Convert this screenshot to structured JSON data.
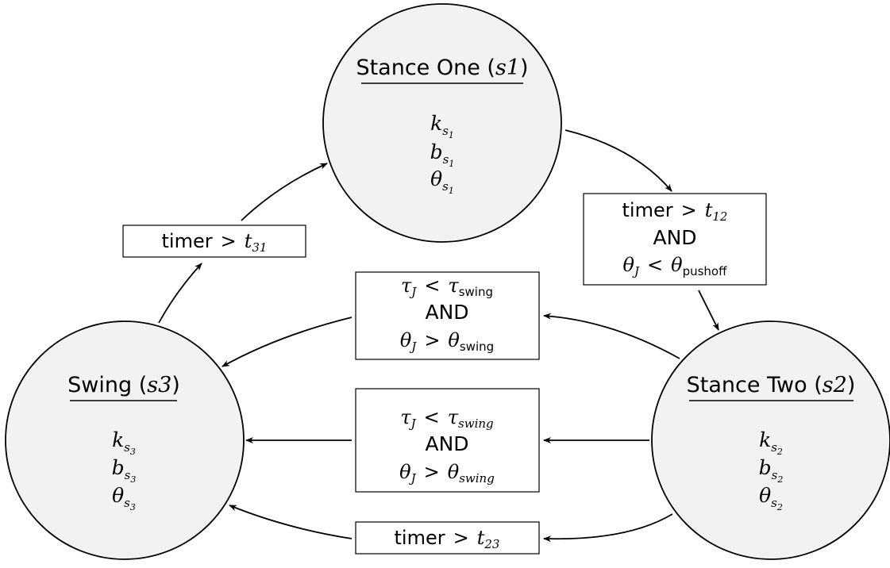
{
  "states": {
    "s1": {
      "title": "Stance One",
      "tag": "s1",
      "params": [
        "k",
        "b",
        "θ"
      ],
      "sub": "s",
      "subsub": "1"
    },
    "s2": {
      "title": "Stance Two",
      "tag": "s2",
      "params": [
        "k",
        "b",
        "θ"
      ],
      "sub": "s",
      "subsub": "2"
    },
    "s3": {
      "title": "Swing",
      "tag": "s3",
      "params": [
        "k",
        "b",
        "θ"
      ],
      "sub": "s",
      "subsub": "3"
    }
  },
  "transitions": {
    "t31": {
      "lhs": "timer",
      "op": ">",
      "rhs": "t",
      "rhs_sub": "31"
    },
    "t12": {
      "line1": {
        "lhs": "timer",
        "op": ">",
        "rhs": "t",
        "rhs_sub": "12"
      },
      "and": "AND",
      "line3": {
        "lhs": "θ",
        "lhs_sub": "J",
        "op": "<",
        "rhs": "θ",
        "rhs_sub": "pushoff"
      }
    },
    "swing_upper": {
      "line1": {
        "lhs": "τ",
        "lhs_sub": "J",
        "op": "<",
        "rhs": "τ",
        "rhs_sub": "swing"
      },
      "and": "AND",
      "line3": {
        "lhs": "θ",
        "lhs_sub": "J",
        "op": ">",
        "rhs": "θ",
        "rhs_sub": "swing"
      }
    },
    "swing_lower": {
      "line1": {
        "lhs": "τ",
        "lhs_sub": "J",
        "op": "<",
        "rhs": "τ",
        "rhs_sub": "swing"
      },
      "and": "AND",
      "line3": {
        "lhs": "θ",
        "lhs_sub": "J",
        "op": ">",
        "rhs": "θ",
        "rhs_sub": "swing"
      }
    },
    "t23": {
      "lhs": "timer",
      "op": ">",
      "rhs": "t",
      "rhs_sub": "23"
    }
  },
  "colors": {
    "state_fill": "#f2f2f2",
    "stroke": "#000000",
    "box_fill": "#ffffff"
  }
}
